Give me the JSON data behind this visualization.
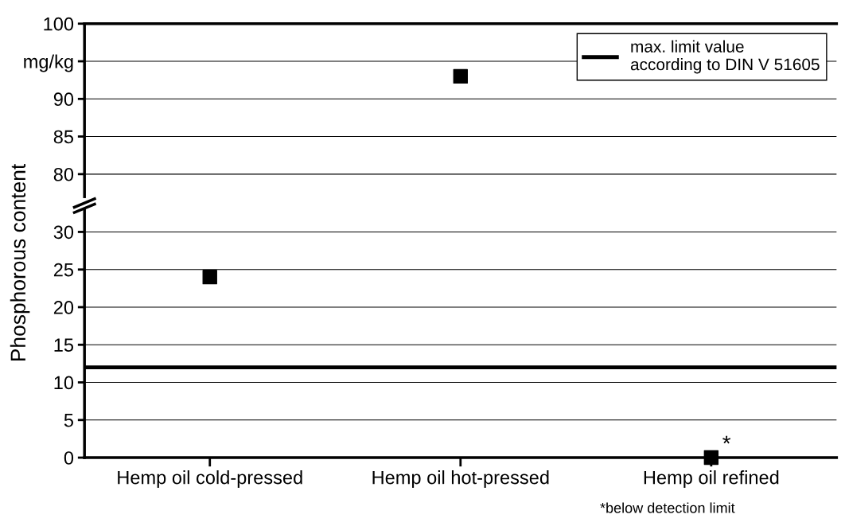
{
  "chart_data": [
    {
      "type": "scatter",
      "categories": [
        null,
        null,
        null
      ],
      "values": [
        null,
        93,
        null
      ],
      "color": "#000000",
      "marker": "square",
      "ylim": [
        77,
        100
      ],
      "yticks": [
        80,
        85,
        90,
        {
          "value": 95,
          "label": "mg/kg"
        },
        100
      ],
      "tick_labels": "y",
      "grid": "y"
    },
    {
      "type": "scatter",
      "categories": [
        "Hemp oil cold-pressed",
        "Hemp oil hot-pressed",
        "Hemp oil refined"
      ],
      "values": [
        24,
        null,
        0
      ],
      "color": "#000000",
      "marker": "square",
      "ylim": [
        0,
        33
      ],
      "yticks": [
        0,
        5,
        10,
        15,
        20,
        25,
        30
      ],
      "grid": "y",
      "ylabel": "Phosphorous content",
      "ref_lines": [
        {
          "axis": "y",
          "value": 12,
          "label": "max. limit value\naccording to DIN V 51605",
          "color": "#000000",
          "line_style": "solid"
        }
      ],
      "legend": "top right",
      "annotations": [
        {
          "text": "*",
          "x": "Hemp oil refined",
          "y": 0
        },
        "*below detection limit"
      ]
    }
  ]
}
